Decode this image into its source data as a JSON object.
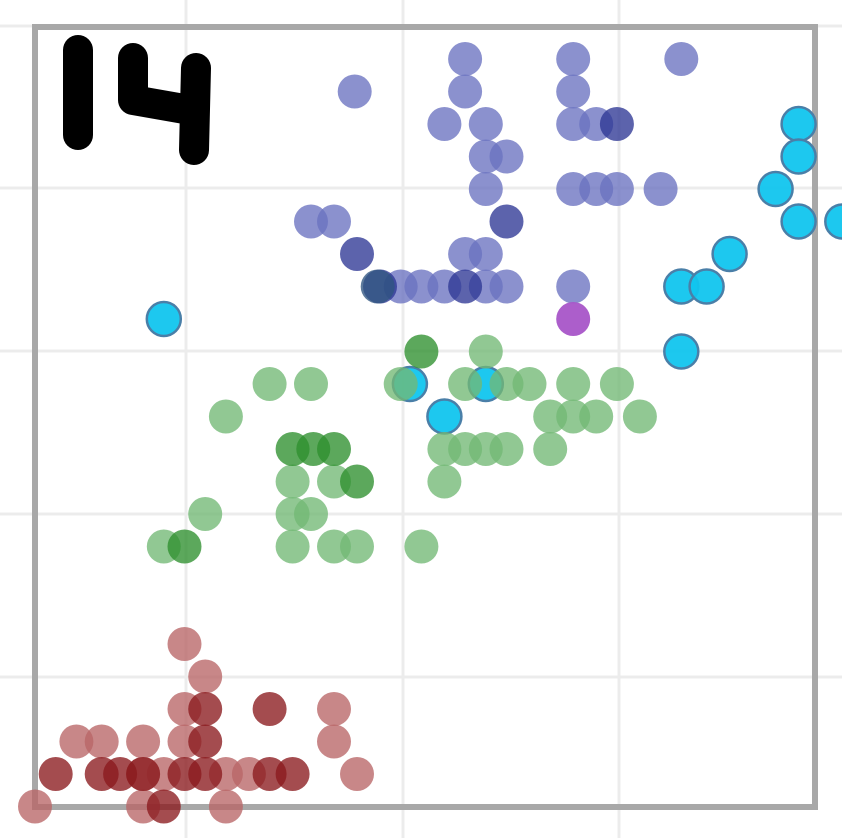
{
  "chart_data": {
    "type": "scatter",
    "title": "",
    "xlabel": "",
    "ylabel": "",
    "grid": true,
    "legend": "none",
    "annotation": "14",
    "series": [
      {
        "color": "#6a72c0",
        "points": [
          [
            19.7,
            10.9
          ],
          [
            24.4,
            10.9
          ],
          [
            29.1,
            10.9
          ],
          [
            14.9,
            10.4
          ],
          [
            19.7,
            10.4
          ],
          [
            24.4,
            10.4
          ],
          [
            18.8,
            9.9
          ],
          [
            20.6,
            9.9
          ],
          [
            24.4,
            9.9
          ],
          [
            25.4,
            9.9
          ],
          [
            20.6,
            9.4
          ],
          [
            21.5,
            9.4
          ],
          [
            20.6,
            8.9
          ],
          [
            24.4,
            8.9
          ],
          [
            25.4,
            8.9
          ],
          [
            26.3,
            8.9
          ],
          [
            28.2,
            8.9
          ],
          [
            13.0,
            8.4
          ],
          [
            14.0,
            8.4
          ],
          [
            19.7,
            7.9
          ],
          [
            20.6,
            7.9
          ],
          [
            16.9,
            7.4
          ],
          [
            17.8,
            7.4
          ],
          [
            18.8,
            7.4
          ],
          [
            20.6,
            7.4
          ],
          [
            21.5,
            7.4
          ],
          [
            24.4,
            7.4
          ]
        ]
      },
      {
        "color": "#2e3795",
        "points": [
          [
            26.3,
            9.9
          ],
          [
            21.5,
            8.4
          ],
          [
            15.0,
            7.9
          ],
          [
            16.0,
            7.4
          ],
          [
            19.7,
            7.4
          ]
        ]
      },
      {
        "color": "#2f5580",
        "points": [
          [
            15.9,
            7.4
          ]
        ]
      },
      {
        "color": "#11c5ee",
        "points": [
          [
            34.2,
            9.9
          ],
          [
            34.2,
            9.4
          ],
          [
            33.2,
            8.9
          ],
          [
            34.2,
            8.4
          ],
          [
            36.1,
            8.4
          ],
          [
            31.2,
            7.9
          ],
          [
            29.1,
            7.4
          ],
          [
            30.2,
            7.4
          ],
          [
            6.6,
            6.9
          ],
          [
            29.1,
            6.4
          ],
          [
            17.3,
            5.9
          ],
          [
            20.6,
            5.9
          ],
          [
            18.8,
            5.4
          ]
        ]
      },
      {
        "color": "#a855c8",
        "points": [
          [
            24.4,
            6.9
          ]
        ]
      },
      {
        "color": "#72b974",
        "points": [
          [
            20.6,
            6.4
          ],
          [
            11.2,
            5.9
          ],
          [
            13.0,
            5.9
          ],
          [
            16.9,
            5.9
          ],
          [
            19.7,
            5.9
          ],
          [
            21.5,
            5.9
          ],
          [
            22.5,
            5.9
          ],
          [
            24.4,
            5.9
          ],
          [
            26.3,
            5.9
          ],
          [
            9.3,
            5.4
          ],
          [
            23.4,
            5.4
          ],
          [
            24.4,
            5.4
          ],
          [
            25.4,
            5.4
          ],
          [
            27.3,
            5.4
          ],
          [
            18.8,
            4.9
          ],
          [
            19.7,
            4.9
          ],
          [
            20.6,
            4.9
          ],
          [
            21.5,
            4.9
          ],
          [
            23.4,
            4.9
          ],
          [
            12.2,
            4.4
          ],
          [
            14.0,
            4.4
          ],
          [
            18.8,
            4.4
          ],
          [
            8.4,
            3.9
          ],
          [
            12.2,
            3.9
          ],
          [
            13.0,
            3.9
          ],
          [
            6.6,
            3.4
          ],
          [
            12.2,
            3.4
          ],
          [
            14.0,
            3.4
          ],
          [
            15.0,
            3.4
          ],
          [
            17.8,
            3.4
          ]
        ]
      },
      {
        "color": "#2e8f2e",
        "points": [
          [
            17.8,
            6.4
          ],
          [
            12.2,
            4.9
          ],
          [
            13.1,
            4.9
          ],
          [
            14.0,
            4.9
          ],
          [
            15.0,
            4.4
          ],
          [
            7.5,
            3.4
          ]
        ]
      },
      {
        "color": "#b86566",
        "points": [
          [
            7.5,
            1.9
          ],
          [
            8.4,
            1.4
          ],
          [
            7.5,
            0.9
          ],
          [
            14.0,
            0.9
          ],
          [
            2.8,
            0.4
          ],
          [
            3.9,
            0.4
          ],
          [
            5.7,
            0.4
          ],
          [
            7.5,
            0.4
          ],
          [
            14.0,
            0.4
          ],
          [
            5.7,
            -0.1
          ],
          [
            6.6,
            -0.1
          ],
          [
            9.3,
            -0.1
          ],
          [
            10.3,
            -0.1
          ],
          [
            15.0,
            -0.1
          ],
          [
            1.0,
            -0.6
          ],
          [
            5.7,
            -0.6
          ],
          [
            9.3,
            -0.6
          ]
        ]
      },
      {
        "color": "#8b1a1e",
        "points": [
          [
            8.4,
            0.9
          ],
          [
            11.2,
            0.9
          ],
          [
            8.4,
            0.4
          ],
          [
            1.9,
            -0.1
          ],
          [
            3.9,
            -0.1
          ],
          [
            4.7,
            -0.1
          ],
          [
            5.7,
            -0.1
          ],
          [
            7.5,
            -0.1
          ],
          [
            8.4,
            -0.1
          ],
          [
            11.2,
            -0.1
          ],
          [
            12.2,
            -0.1
          ],
          [
            6.6,
            -0.6
          ]
        ]
      }
    ]
  }
}
